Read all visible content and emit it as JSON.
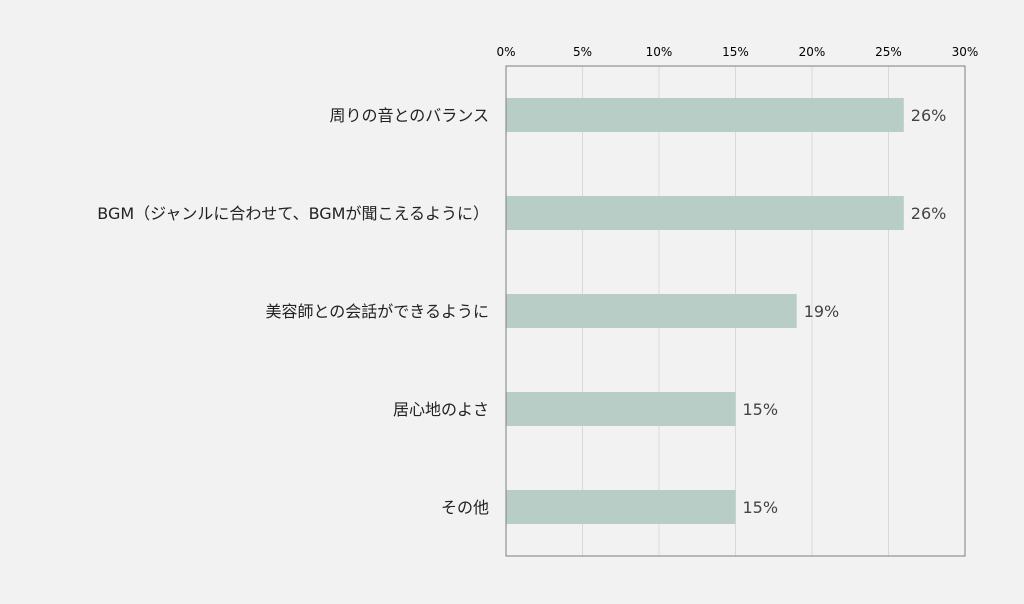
{
  "chart_data": {
    "type": "bar",
    "orientation": "horizontal",
    "categories": [
      "周りの音とのバランス",
      "BGM（ジャンルに合わせて、BGMが聞こえるように）",
      "美容師との会話ができるように",
      "居心地のよさ",
      "その他"
    ],
    "values": [
      26,
      26,
      19,
      15,
      15
    ],
    "data_labels": [
      "26%",
      "26%",
      "19%",
      "15%",
      "15%"
    ],
    "xlim": [
      0,
      30
    ],
    "x_ticks": [
      0,
      5,
      10,
      15,
      20,
      25,
      30
    ],
    "x_tick_labels": [
      "0%",
      "5%",
      "10%",
      "15%",
      "20%",
      "25%",
      "30%"
    ],
    "x_axis_position": "top",
    "grid": true,
    "legend": "none",
    "title": "",
    "xlabel": "",
    "ylabel": ""
  },
  "colors": {
    "background": "#f2f2f2",
    "bar": "#b8cdc6",
    "grid": "#d9d9d9",
    "frame": "#7f7f7f"
  }
}
